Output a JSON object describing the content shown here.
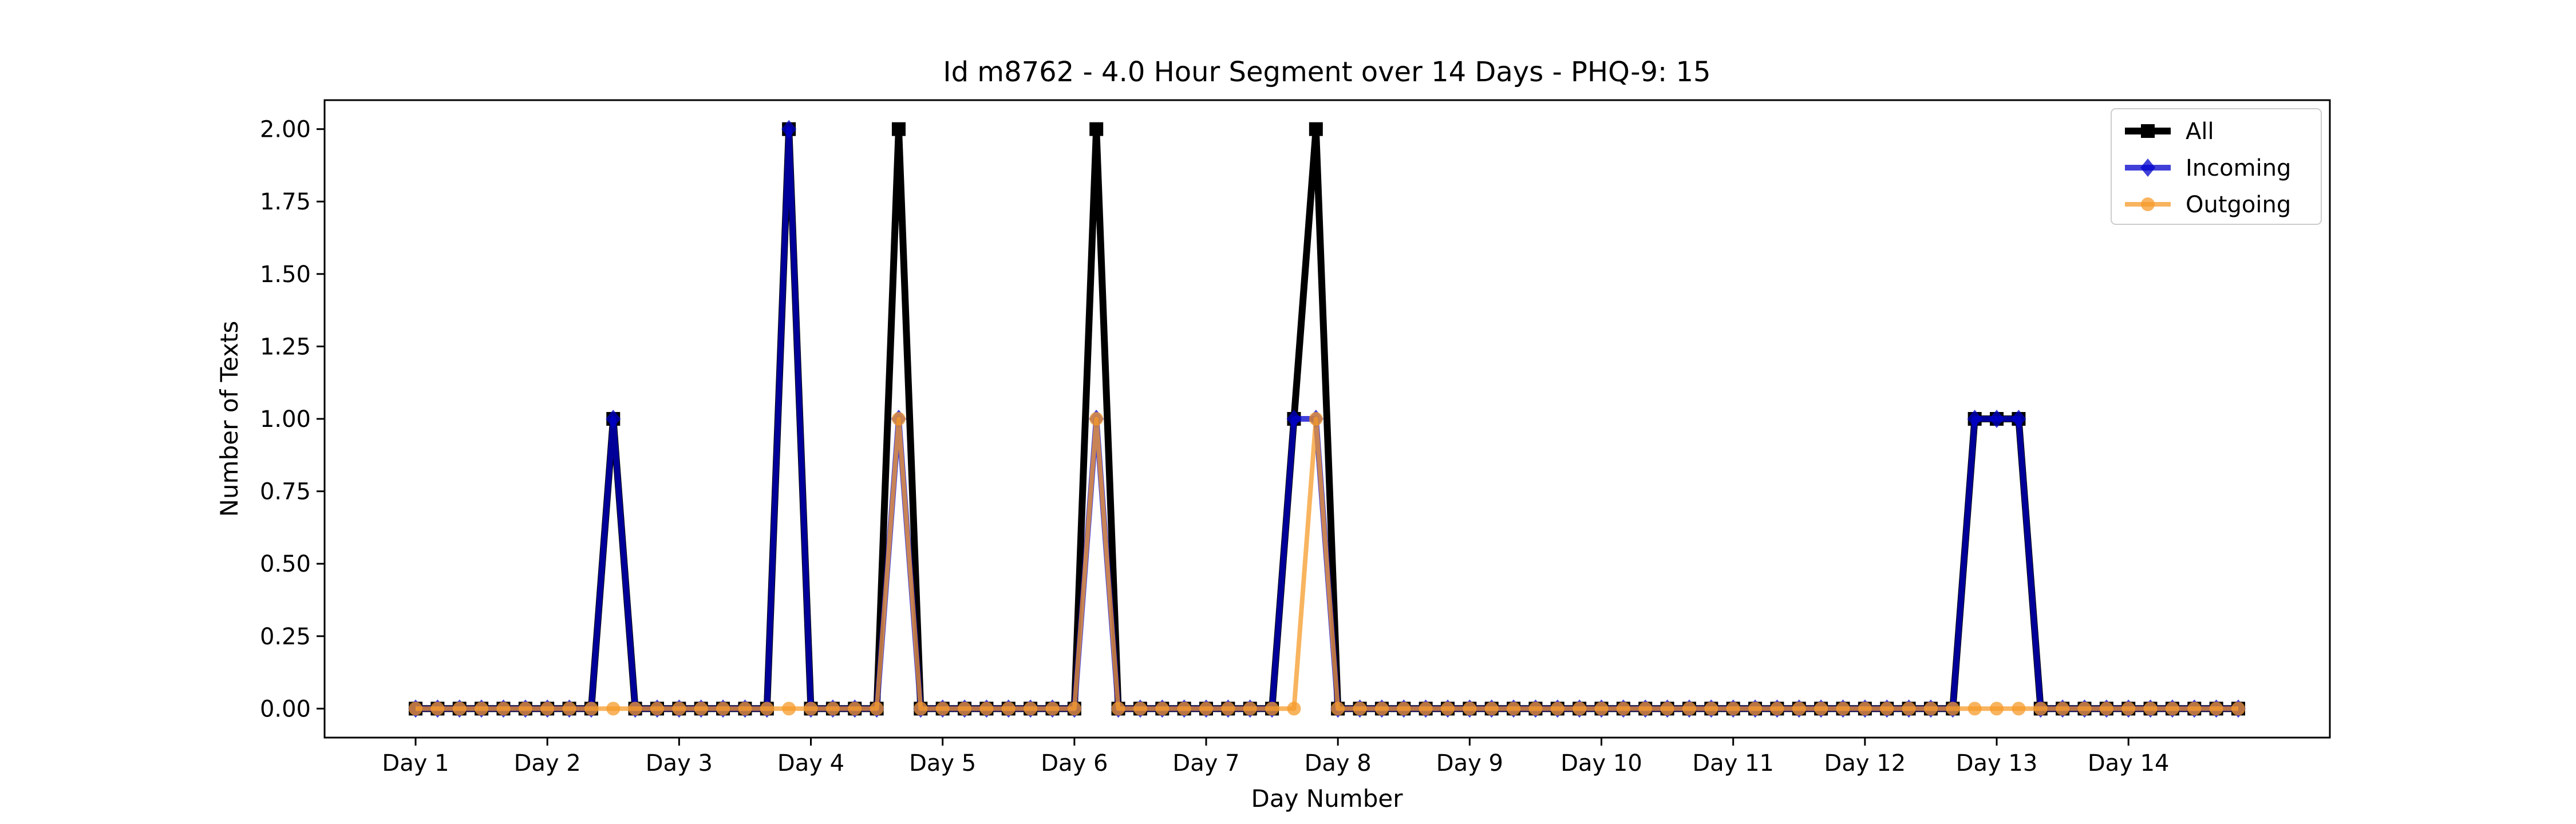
{
  "chart_data": {
    "type": "line",
    "title": "Id m8762 - 4.0 Hour Segment over 14 Days - PHQ-9: 15",
    "xlabel": "Day Number",
    "ylabel": "Number of Texts",
    "x_tick_labels": [
      "Day 1",
      "Day 2",
      "Day 3",
      "Day 4",
      "Day 5",
      "Day 6",
      "Day 7",
      "Day 8",
      "Day 9",
      "Day 10",
      "Day 11",
      "Day 12",
      "Day 13",
      "Day 14"
    ],
    "y_tick_labels": [
      "0.00",
      "0.25",
      "0.50",
      "0.75",
      "1.00",
      "1.25",
      "1.50",
      "1.75",
      "2.00"
    ],
    "ylim": [
      -0.1,
      2.1
    ],
    "points_per_day": 6,
    "grid": false,
    "legend_position": "top-right",
    "series": [
      {
        "name": "All",
        "color": "#000000",
        "marker": "square",
        "values": [
          0,
          0,
          0,
          0,
          0,
          0,
          0,
          0,
          0,
          1,
          0,
          0,
          0,
          0,
          0,
          0,
          0,
          2,
          0,
          0,
          0,
          0,
          2,
          0,
          0,
          0,
          0,
          0,
          0,
          0,
          0,
          2,
          0,
          0,
          0,
          0,
          0,
          0,
          0,
          0,
          1,
          2,
          0,
          0,
          0,
          0,
          0,
          0,
          0,
          0,
          0,
          0,
          0,
          0,
          0,
          0,
          0,
          0,
          0,
          0,
          0,
          0,
          0,
          0,
          0,
          0,
          0,
          0,
          0,
          0,
          0,
          1,
          1,
          1,
          0,
          0,
          0,
          0,
          0,
          0,
          0,
          0,
          0,
          0
        ]
      },
      {
        "name": "Incoming",
        "color": "#0000cc",
        "marker": "diamond",
        "values": [
          0,
          0,
          0,
          0,
          0,
          0,
          0,
          0,
          0,
          1,
          0,
          0,
          0,
          0,
          0,
          0,
          0,
          2,
          0,
          0,
          0,
          0,
          1,
          0,
          0,
          0,
          0,
          0,
          0,
          0,
          0,
          1,
          0,
          0,
          0,
          0,
          0,
          0,
          0,
          0,
          1,
          1,
          0,
          0,
          0,
          0,
          0,
          0,
          0,
          0,
          0,
          0,
          0,
          0,
          0,
          0,
          0,
          0,
          0,
          0,
          0,
          0,
          0,
          0,
          0,
          0,
          0,
          0,
          0,
          0,
          0,
          1,
          1,
          1,
          0,
          0,
          0,
          0,
          0,
          0,
          0,
          0,
          0,
          0
        ]
      },
      {
        "name": "Outgoing",
        "color": "#f59b2a",
        "marker": "circle",
        "values": [
          0,
          0,
          0,
          0,
          0,
          0,
          0,
          0,
          0,
          0,
          0,
          0,
          0,
          0,
          0,
          0,
          0,
          0,
          0,
          0,
          0,
          0,
          1,
          0,
          0,
          0,
          0,
          0,
          0,
          0,
          0,
          1,
          0,
          0,
          0,
          0,
          0,
          0,
          0,
          0,
          0,
          1,
          0,
          0,
          0,
          0,
          0,
          0,
          0,
          0,
          0,
          0,
          0,
          0,
          0,
          0,
          0,
          0,
          0,
          0,
          0,
          0,
          0,
          0,
          0,
          0,
          0,
          0,
          0,
          0,
          0,
          0,
          0,
          0,
          0,
          0,
          0,
          0,
          0,
          0,
          0,
          0,
          0,
          0
        ]
      }
    ]
  }
}
